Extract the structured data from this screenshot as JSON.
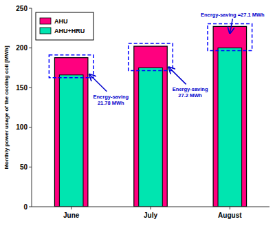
{
  "chart_data": {
    "type": "bar",
    "categories": [
      "June",
      "July",
      "August"
    ],
    "series": [
      {
        "name": "AHU",
        "color": "#FF007F",
        "values": [
          187.78,
          202.2,
          227.1
        ]
      },
      {
        "name": "AHU+HRU",
        "color": "#00E5B0",
        "values": [
          166.0,
          175.0,
          200.0
        ]
      }
    ],
    "ylabel": "Monthly power usage of the cooling coil [MWh]",
    "ylim": [
      0,
      250
    ],
    "yticks": [
      0,
      50,
      100,
      150,
      200,
      250
    ],
    "annotations": [
      {
        "text": "Energy-saving\n21.78 MWh",
        "color": "#0000CC"
      },
      {
        "text": "Energy-saving\n27.2 MWh",
        "color": "#0000CC"
      },
      {
        "text": "Energy-saving =27.1 MWh",
        "color": "#0000CC"
      }
    ],
    "legend": "upper left",
    "grid": false
  }
}
